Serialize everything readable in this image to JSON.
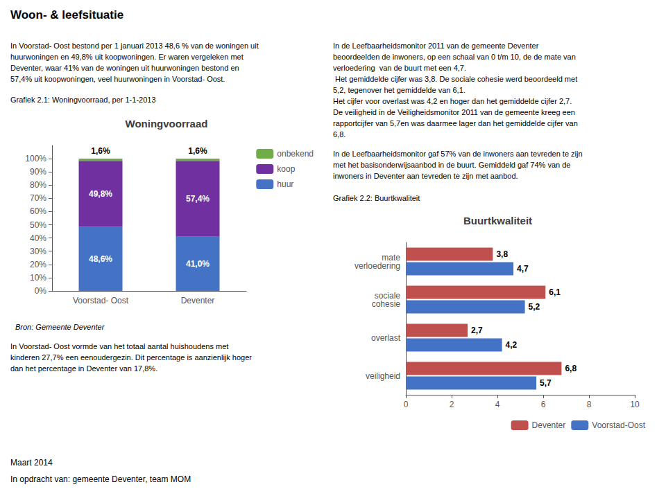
{
  "title": "Woon- & leefsituatie",
  "annotations": [
    "In Voorstad- Oost bestond per 1 januari 2013 48,6 % van de woningen uit\nhuurwoningen en 49,8% uit koopwoningen. Er waren vergeleken met\nDeventer, waar 41% van de woningen uit huurwoningen bestond en\n57,4% uit koopwoningen, veel huurwoningen in Voorstad- Oost.",
    "Grafiek 2.1: Woningvoorraad, per 1-1-2013",
    "Bron: Gemeente Deventer",
    "In Voorstad- Oost vormde van het totaal aantal huishoudens met\nkinderen 27,7% een eenoudergezin. Dit percentage is aanzienlijk hoger\ndan het percentage in Deventer van 17,8%.",
    "In de Leefbaarheidsmonitor 2011 van de gemeente Deventer\nbeoordeelden de inwoners, op een schaal van 0 t/m 10, de de mate van\nverloedering  van de buurt met een 4,7.\n Het gemiddelde cijfer was 3,8. De sociale cohesie werd beoordeeld met\n5,2, tegenover het gemiddelde van 6,1.\nHet cijfer voor overlast was 4,2 en hoger dan het gemiddelde cijfer 2,7.\nDe veiligheid in de Veiligheidsmonitor 2011 van de gemeente kreeg een\nrapportcijfer van 5,7en was daarmee lager dan het gemiddelde cijfer van\n6,8.",
    "In de Leefbaarheidsmonitor gaf 57% van de inwoners aan tevreden te zijn\nmet het basisonderwijsaanbod in de buurt. Gemiddeld gaf 74% van de\ninwoners in Deventer aan tevreden te zijn met aanbod.",
    "Grafiek 2.2: Buurtkwaliteit",
    "Maart 2014",
    "In opdracht van: gemeente Deventer, team MOM"
  ],
  "chart_data": [
    {
      "type": "bar",
      "title": "Woningvoorraad",
      "stacked": true,
      "data_labels": true,
      "categories": [
        "Voorstad- Oost",
        "Deventer"
      ],
      "series": [
        {
          "name": "huur",
          "color": "#4472C4",
          "values": [
            48.6,
            41.0
          ],
          "value_labels": [
            "48,6%",
            "41,0%"
          ]
        },
        {
          "name": "koop",
          "color": "#7030A0",
          "values": [
            49.8,
            57.4
          ],
          "value_labels": [
            "49,8%",
            "57,4%"
          ]
        },
        {
          "name": "onbekend",
          "color": "#70AD47",
          "values": [
            1.6,
            1.6
          ],
          "value_labels": [
            "1,6%",
            "1,6%"
          ]
        }
      ],
      "ylim": [
        0,
        110
      ],
      "yticks": [
        {
          "value": 0,
          "label": "0%"
        },
        {
          "value": 10,
          "label": "10%"
        },
        {
          "value": 20,
          "label": "20%"
        },
        {
          "value": 30,
          "label": "30%"
        },
        {
          "value": 40,
          "label": "40%"
        },
        {
          "value": 50,
          "label": "50%"
        },
        {
          "value": 60,
          "label": "60%"
        },
        {
          "value": 70,
          "label": "70%"
        },
        {
          "value": 80,
          "label": "80%"
        },
        {
          "value": 90,
          "label": "90%"
        },
        {
          "value": 100,
          "label": "100%"
        }
      ],
      "grid": false,
      "legend": "upper right"
    },
    {
      "type": "bar",
      "title": "Buurtkwaliteit",
      "orientation": "horizontal",
      "data_labels": true,
      "categories": [
        "mate\nverloedering",
        "sociale\ncohesie",
        "overlast",
        "veiligheid"
      ],
      "series": [
        {
          "name": "Deventer",
          "color": "#C0504D",
          "values": [
            3.8,
            6.1,
            2.7,
            6.8
          ],
          "value_labels": [
            "3,8",
            "6,1",
            "2,7",
            "6,8"
          ]
        },
        {
          "name": "Voorstad-Oost",
          "color": "#4472C4",
          "values": [
            4.7,
            5.2,
            4.2,
            5.7
          ],
          "value_labels": [
            "4,7",
            "5,2",
            "4,2",
            "5,7"
          ]
        }
      ],
      "xlim": [
        0,
        10
      ],
      "xticks": [
        0,
        2,
        4,
        6,
        8,
        10
      ],
      "grid": false,
      "legend": "lower right"
    }
  ]
}
